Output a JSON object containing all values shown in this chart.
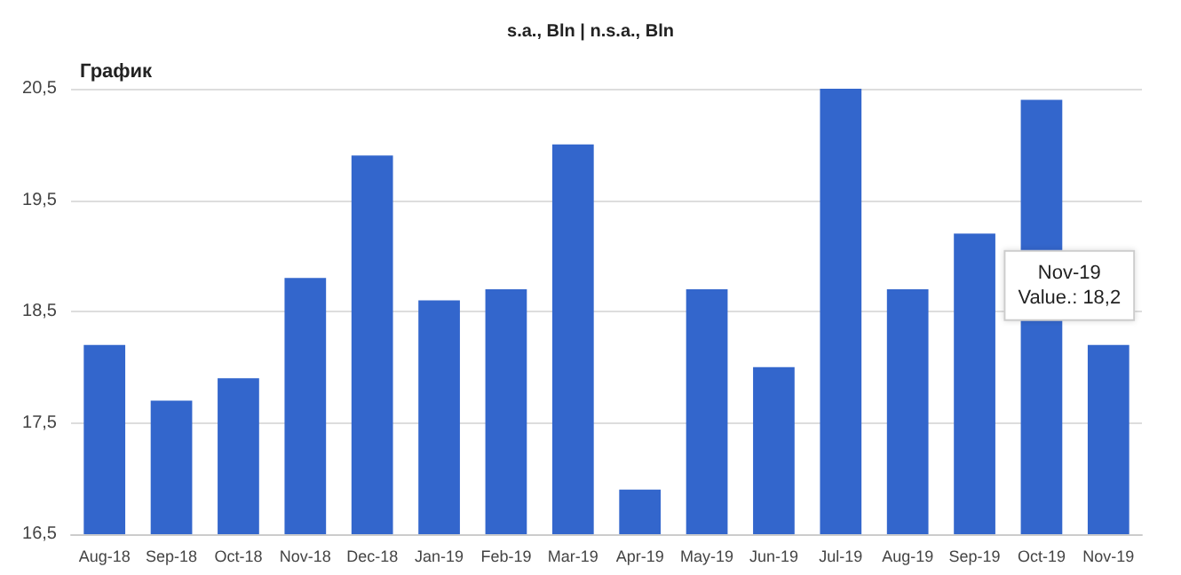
{
  "chart_data": {
    "type": "bar",
    "title": "График",
    "subtitle": "s.a., Bln | n.s.a., Bln",
    "categories": [
      "Aug-18",
      "Sep-18",
      "Oct-18",
      "Nov-18",
      "Dec-18",
      "Jan-19",
      "Feb-19",
      "Mar-19",
      "Apr-19",
      "May-19",
      "Jun-19",
      "Jul-19",
      "Aug-19",
      "Sep-19",
      "Oct-19",
      "Nov-19"
    ],
    "values": [
      18.2,
      17.7,
      17.9,
      18.8,
      19.9,
      18.6,
      18.7,
      20.0,
      16.9,
      18.7,
      18.0,
      20.5,
      18.7,
      19.2,
      20.4,
      18.2
    ],
    "color": "#3366cc",
    "ylim": [
      16.5,
      20.5
    ],
    "yticks": [
      {
        "value": 16.5,
        "label": "16,5"
      },
      {
        "value": 17.5,
        "label": "17,5"
      },
      {
        "value": 18.5,
        "label": "18,5"
      },
      {
        "value": 19.5,
        "label": "19,5"
      },
      {
        "value": 20.5,
        "label": "20,5"
      }
    ],
    "grid": "y",
    "annotations": [
      {
        "text": "Nov-19\nValue.: 18,2",
        "x": "Nov-19",
        "y": 18.2
      }
    ]
  }
}
